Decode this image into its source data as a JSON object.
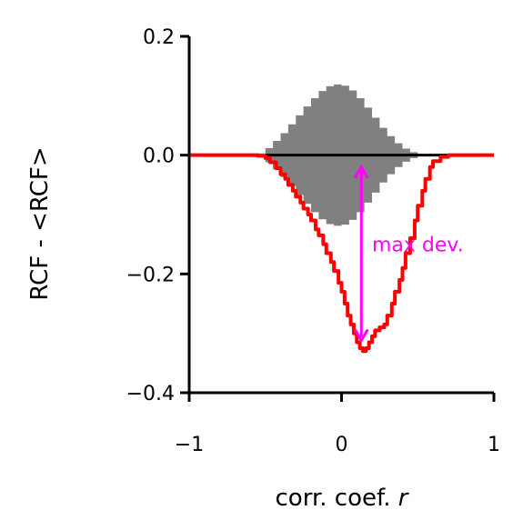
{
  "chart_data": {
    "type": "line",
    "xlabel": "corr. coef.",
    "xlabel_var": "r",
    "ylabel": "RCF - <RCF>",
    "xlim": [
      -1,
      1
    ],
    "ylim": [
      -0.4,
      0.2
    ],
    "x_ticks": [
      {
        "value": -1,
        "label": "−1"
      },
      {
        "value": 0,
        "label": "0"
      },
      {
        "value": 1,
        "label": "1"
      }
    ],
    "y_ticks": [
      {
        "value": 0.2,
        "label": "0.2"
      },
      {
        "value": 0.0,
        "label": "0.0"
      },
      {
        "value": -0.2,
        "label": "−0.2"
      },
      {
        "value": -0.4,
        "label": "−0.4"
      }
    ],
    "band": {
      "color": "#808080",
      "x": [
        -0.6,
        -0.55,
        -0.5,
        -0.45,
        -0.4,
        -0.35,
        -0.3,
        -0.25,
        -0.2,
        -0.15,
        -0.1,
        -0.05,
        0.0,
        0.05,
        0.1,
        0.15,
        0.2,
        0.25,
        0.3,
        0.35,
        0.4,
        0.45,
        0.5,
        0.55,
        0.6,
        0.65,
        0.7
      ],
      "upper": [
        0.0,
        0.003,
        0.012,
        0.024,
        0.037,
        0.052,
        0.067,
        0.082,
        0.096,
        0.108,
        0.116,
        0.119,
        0.117,
        0.109,
        0.096,
        0.08,
        0.063,
        0.046,
        0.032,
        0.02,
        0.011,
        0.005,
        0.002,
        0.0,
        0.0,
        0.0,
        0.0
      ],
      "lower": [
        0.0,
        -0.003,
        -0.012,
        -0.024,
        -0.037,
        -0.052,
        -0.067,
        -0.082,
        -0.096,
        -0.108,
        -0.116,
        -0.119,
        -0.117,
        -0.109,
        -0.096,
        -0.08,
        -0.063,
        -0.046,
        -0.032,
        -0.02,
        -0.011,
        -0.005,
        -0.002,
        0.0,
        0.0,
        0.0,
        0.0
      ]
    },
    "zero_line": {
      "y": 0.0,
      "x_from": -0.5,
      "x_to": 0.7,
      "color": "#000000"
    },
    "series": [
      {
        "color": "#ff0000",
        "x": [
          -1.0,
          -0.6,
          -0.55,
          -0.5,
          -0.47,
          -0.43,
          -0.4,
          -0.37,
          -0.35,
          -0.32,
          -0.3,
          -0.27,
          -0.25,
          -0.22,
          -0.2,
          -0.17,
          -0.15,
          -0.12,
          -0.1,
          -0.07,
          -0.05,
          -0.02,
          0.0,
          0.02,
          0.04,
          0.06,
          0.08,
          0.1,
          0.12,
          0.14,
          0.16,
          0.18,
          0.2,
          0.22,
          0.25,
          0.28,
          0.3,
          0.33,
          0.35,
          0.38,
          0.4,
          0.42,
          0.45,
          0.48,
          0.5,
          0.53,
          0.55,
          0.58,
          0.6,
          0.65,
          0.7,
          1.0
        ],
        "y": [
          0.0,
          0.0,
          -0.001,
          -0.005,
          -0.012,
          -0.022,
          -0.032,
          -0.04,
          -0.05,
          -0.06,
          -0.07,
          -0.08,
          -0.09,
          -0.1,
          -0.11,
          -0.125,
          -0.135,
          -0.15,
          -0.165,
          -0.18,
          -0.195,
          -0.215,
          -0.23,
          -0.25,
          -0.27,
          -0.285,
          -0.3,
          -0.315,
          -0.325,
          -0.33,
          -0.325,
          -0.315,
          -0.305,
          -0.295,
          -0.29,
          -0.285,
          -0.27,
          -0.25,
          -0.23,
          -0.21,
          -0.19,
          -0.165,
          -0.14,
          -0.11,
          -0.085,
          -0.06,
          -0.04,
          -0.02,
          -0.01,
          -0.003,
          0.0,
          0.0
        ]
      }
    ],
    "annotation": {
      "text": "max dev.",
      "color": "#ff00ff",
      "arrow_x": 0.13,
      "arrow_y_from": -0.02,
      "arrow_y_to": -0.312,
      "text_x": 0.2,
      "text_y": -0.15
    }
  }
}
